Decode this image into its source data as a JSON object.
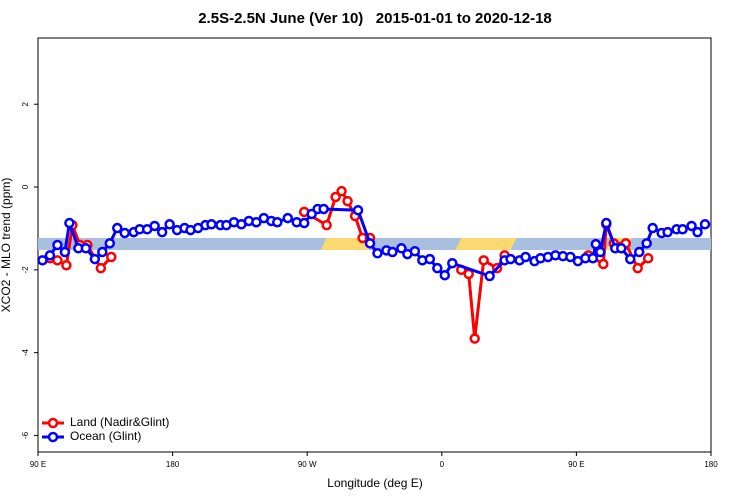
{
  "chart_data": {
    "type": "line",
    "title": "2.5S-2.5N June (Ver 10)   2015-01-01 to 2020-12-18",
    "x_label": "Longitude (deg E)",
    "y_label": "XCO2 - MLO trend (ppm)",
    "xlim": [
      90,
      540
    ],
    "xticks": [
      {
        "value": 90,
        "label": "90 E"
      },
      {
        "value": 180,
        "label": "180"
      },
      {
        "value": 270,
        "label": "90 W"
      },
      {
        "value": 360,
        "label": "0"
      },
      {
        "value": 450,
        "label": "90 E"
      },
      {
        "value": 540,
        "label": "180"
      }
    ],
    "ylim": [
      -6.4,
      3.6
    ],
    "yticks": [
      2,
      0,
      -2,
      -4,
      -6
    ],
    "legend": "bottom-left",
    "surface_band": {
      "range": [
        -1.52,
        -1.23
      ],
      "ocean_color": "#a9bfdf",
      "land_color": "#fcd870",
      "land": [
        [
          279,
          311
        ],
        [
          369,
          406
        ],
        [
          470,
          483
        ]
      ]
    },
    "series": [
      {
        "name": "Land (Nadir&Glint)",
        "color": "#ff0000",
        "x": [
          98,
          103,
          109,
          113,
          118,
          123,
          132,
          139,
          null,
          268,
          283,
          289,
          293,
          297,
          302,
          307,
          312,
          null,
          373,
          378,
          382,
          388,
          397,
          402,
          null,
          458,
          468,
          470,
          475,
          483,
          491,
          498
        ],
        "values": [
          -1.72,
          -1.77,
          -1.89,
          -0.92,
          -1.4,
          -1.4,
          -1.96,
          -1.69,
          null,
          -0.6,
          -0.92,
          -0.24,
          -0.1,
          -0.34,
          -0.7,
          -1.23,
          -1.23,
          null,
          -2.0,
          -2.1,
          -3.66,
          -1.77,
          -1.96,
          -1.65,
          null,
          -1.65,
          -1.86,
          -0.9,
          -1.36,
          -1.36,
          -1.96,
          -1.72
        ]
      },
      {
        "name": "Ocean (Glint)",
        "color": "#0000ff",
        "x": [
          93,
          98,
          103,
          108,
          111,
          117,
          122,
          128,
          133,
          138,
          143,
          148,
          154,
          158,
          163,
          168,
          173,
          178,
          183,
          188,
          192,
          197,
          202,
          206,
          212,
          216,
          221,
          226,
          231,
          236,
          241,
          246,
          250,
          257,
          263,
          268,
          273,
          277,
          281,
          304,
          312,
          317,
          323,
          327,
          333,
          337,
          342,
          347,
          352,
          357,
          362,
          367,
          392,
          402,
          406,
          412,
          416,
          422,
          426,
          431,
          436,
          441,
          446,
          451,
          456,
          461,
          463,
          466,
          470,
          476,
          480,
          486,
          492,
          497,
          501,
          507,
          511,
          517,
          521,
          527,
          531,
          536
        ],
        "values": [
          -1.77,
          -1.65,
          -1.4,
          -1.57,
          -0.87,
          -1.48,
          -1.48,
          -1.74,
          -1.57,
          -1.36,
          -0.99,
          -1.11,
          -1.09,
          -1.02,
          -1.02,
          -0.94,
          -1.09,
          -0.9,
          -1.04,
          -0.99,
          -1.04,
          -0.99,
          -0.92,
          -0.9,
          -0.92,
          -0.92,
          -0.85,
          -0.9,
          -0.82,
          -0.85,
          -0.75,
          -0.82,
          -0.85,
          -0.75,
          -0.85,
          -0.87,
          -0.65,
          -0.53,
          -0.53,
          -0.56,
          -1.36,
          -1.6,
          -1.53,
          -1.57,
          -1.48,
          -1.62,
          -1.55,
          -1.77,
          -1.74,
          -1.96,
          -2.13,
          -1.84,
          -2.15,
          -1.77,
          -1.74,
          -1.77,
          -1.69,
          -1.79,
          -1.72,
          -1.69,
          -1.65,
          -1.67,
          -1.69,
          -1.79,
          -1.72,
          -1.72,
          -1.38,
          -1.57,
          -0.87,
          -1.48,
          -1.48,
          -1.74,
          -1.57,
          -1.36,
          -0.99,
          -1.11,
          -1.09,
          -1.02,
          -1.02,
          -0.94,
          -1.09,
          -0.9
        ]
      }
    ]
  }
}
